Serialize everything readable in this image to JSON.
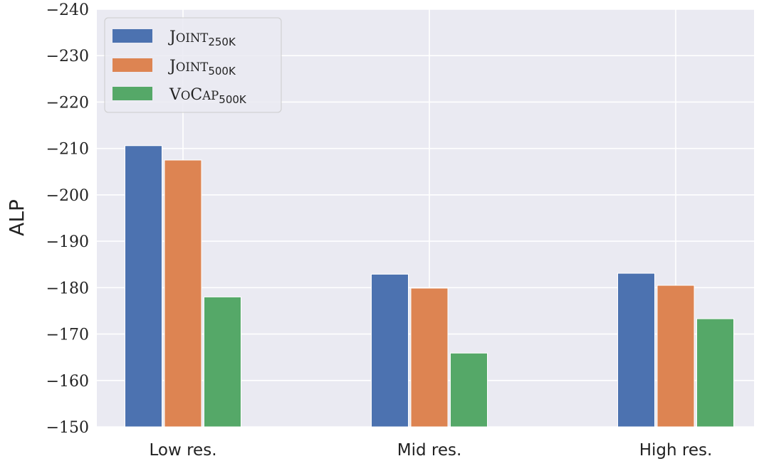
{
  "chart_data": {
    "type": "bar",
    "categories": [
      "Low res.",
      "Mid res.",
      "High res."
    ],
    "ylabel": "ALP",
    "xlabel": "",
    "ylim": [
      -150,
      -240
    ],
    "yticks": [
      -240,
      -230,
      -220,
      -210,
      -200,
      -190,
      -180,
      -170,
      -160,
      -150
    ],
    "ytick_labels": [
      "−240",
      "−230",
      "−220",
      "−210",
      "−200",
      "−190",
      "−180",
      "−170",
      "−160",
      "−150"
    ],
    "series": [
      {
        "name": "JOINT250K",
        "name_main": "J",
        "name_small_caps": "OINT",
        "name_sub": "250K",
        "color": "#4c72b0",
        "values": [
          -210.6,
          -182.9,
          -183.1
        ]
      },
      {
        "name": "JOINT500K",
        "name_main": "J",
        "name_small_caps": "OINT",
        "name_sub": "500K",
        "color": "#dd8452",
        "values": [
          -207.5,
          -179.9,
          -180.5
        ]
      },
      {
        "name": "VOCAP500K",
        "name_main": "V",
        "name_small_caps": "O",
        "name_main2": "C",
        "name_small_caps2": "AP",
        "name_sub": "500K",
        "color": "#55a868",
        "values": [
          -178.0,
          -165.9,
          -173.3
        ]
      }
    ],
    "grid": true,
    "legend_position": "top-left",
    "background_color": "#eaeaf2"
  }
}
